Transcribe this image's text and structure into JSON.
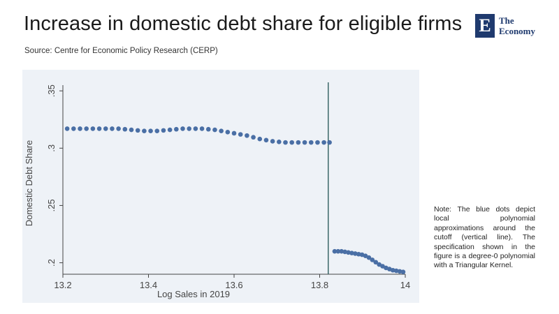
{
  "header": {
    "title": "Increase in domestic debt share for eligible firms",
    "source": "Source: Centre for Economic Policy Research (CERP)"
  },
  "logo": {
    "mark": "E",
    "line1": "The",
    "line2": "Economy",
    "color": "#1f3a6e"
  },
  "note": "Note: The blue dots depict local polynomial approximations around the cutoff (vertical line). The specification shown in the figure is a degree-0 polynomial with a Triangular Kernel.",
  "colors": {
    "dots": "#4a6fa5",
    "cutoff_line": "#2e5e5e",
    "panel": "#eef2f7"
  },
  "chart_data": {
    "type": "scatter",
    "xlabel": "Log Sales in 2019",
    "ylabel": "Domestic Debt Share",
    "xlim": [
      13.2,
      14.0
    ],
    "ylim": [
      0.19,
      0.355
    ],
    "x_ticks": [
      {
        "value": 13.2,
        "label": "13.2"
      },
      {
        "value": 13.4,
        "label": "13.4"
      },
      {
        "value": 13.6,
        "label": "13.6"
      },
      {
        "value": 13.8,
        "label": "13.8"
      },
      {
        "value": 14.0,
        "label": "14"
      }
    ],
    "y_ticks": [
      {
        "value": 0.2,
        "label": ".2"
      },
      {
        "value": 0.25,
        "label": ".25"
      },
      {
        "value": 0.3,
        "label": ".3"
      },
      {
        "value": 0.35,
        "label": ".35"
      }
    ],
    "cutoff_x": 13.82,
    "series": [
      {
        "x": [
          13.21,
          13.225,
          13.24,
          13.255,
          13.27,
          13.285,
          13.3,
          13.315,
          13.33,
          13.345,
          13.36,
          13.375,
          13.39,
          13.405,
          13.42,
          13.435,
          13.45,
          13.465,
          13.48,
          13.495,
          13.51,
          13.525,
          13.54,
          13.555,
          13.57,
          13.585,
          13.6,
          13.615,
          13.63,
          13.645,
          13.66,
          13.675,
          13.69,
          13.705,
          13.72,
          13.735,
          13.75,
          13.765,
          13.78,
          13.795,
          13.81,
          13.823
        ],
        "y": [
          0.317,
          0.317,
          0.317,
          0.317,
          0.317,
          0.317,
          0.317,
          0.317,
          0.317,
          0.3165,
          0.316,
          0.3155,
          0.315,
          0.315,
          0.315,
          0.3155,
          0.316,
          0.3165,
          0.317,
          0.317,
          0.317,
          0.317,
          0.3165,
          0.316,
          0.315,
          0.314,
          0.313,
          0.312,
          0.311,
          0.3095,
          0.308,
          0.307,
          0.306,
          0.3055,
          0.305,
          0.305,
          0.305,
          0.305,
          0.305,
          0.305,
          0.305,
          0.305
        ]
      },
      {
        "x": [
          13.835,
          13.843,
          13.851,
          13.859,
          13.867,
          13.875,
          13.883,
          13.891,
          13.899,
          13.907,
          13.915,
          13.923,
          13.931,
          13.939,
          13.947,
          13.955,
          13.963,
          13.971,
          13.979,
          13.987,
          13.995
        ],
        "y": [
          0.21,
          0.21,
          0.21,
          0.2095,
          0.209,
          0.2085,
          0.208,
          0.2075,
          0.207,
          0.206,
          0.2045,
          0.2025,
          0.2005,
          0.1985,
          0.197,
          0.1955,
          0.1945,
          0.1935,
          0.193,
          0.1925,
          0.192
        ]
      }
    ]
  }
}
